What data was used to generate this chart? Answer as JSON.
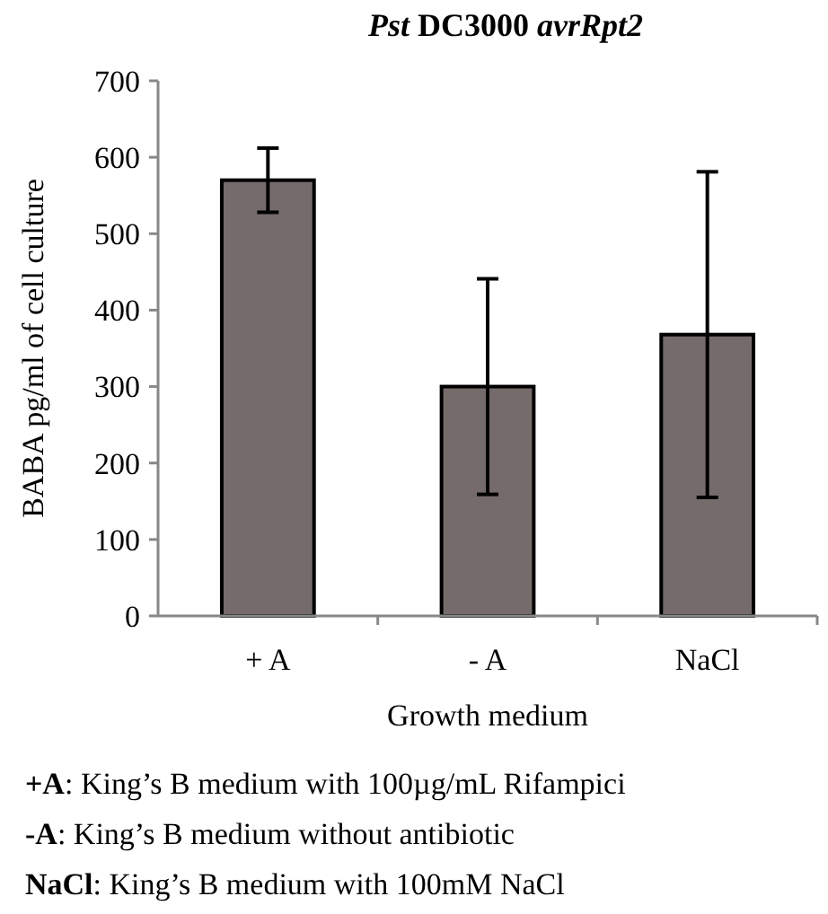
{
  "chart_data": {
    "type": "bar",
    "title": "Pst DC3000 avrRpt2",
    "xlabel": "Growth medium",
    "ylabel": "BABA pg/ml of cell culture",
    "categories": [
      "+ A",
      "- A",
      "NaCl"
    ],
    "values": [
      570,
      300,
      368
    ],
    "errors": [
      42,
      141,
      213
    ],
    "color": "#756b6b",
    "ylim": [
      0,
      700
    ],
    "yticks": [
      0,
      100,
      200,
      300,
      400,
      500,
      600,
      700
    ],
    "grid": false,
    "annotations": [
      "+A: King’s B medium with 100µg/mL Rifampici",
      "-A: King’s B medium without antibiotic",
      "NaCl: King’s B medium with 100mM NaCl"
    ]
  }
}
